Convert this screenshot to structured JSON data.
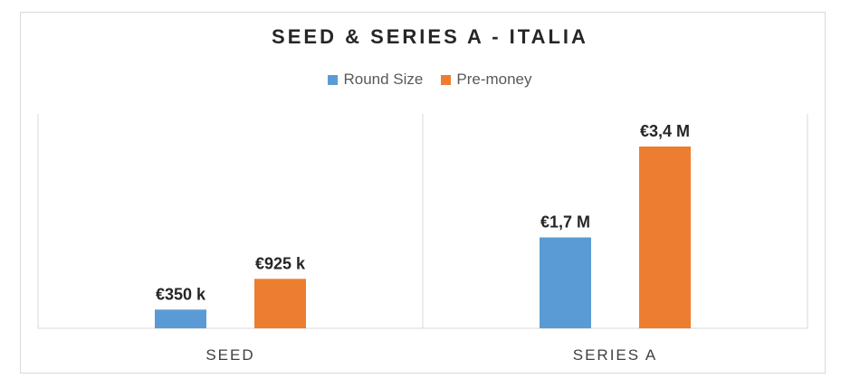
{
  "chart_data": {
    "type": "bar",
    "title": "SEED & SERIES A - ITALIA",
    "categories": [
      "SEED",
      "SERIES A"
    ],
    "series": [
      {
        "name": "Round Size",
        "values": [
          350000,
          1700000
        ],
        "labels": [
          "€350 k",
          "€1,7 M"
        ],
        "color": "#5b9bd5"
      },
      {
        "name": "Pre-money",
        "values": [
          925000,
          3400000
        ],
        "labels": [
          "€925 k",
          "€3,4 M"
        ],
        "color": "#ed7d31"
      }
    ],
    "ylim": [
      0,
      3400000
    ],
    "legend_position": "top",
    "grid": false
  }
}
